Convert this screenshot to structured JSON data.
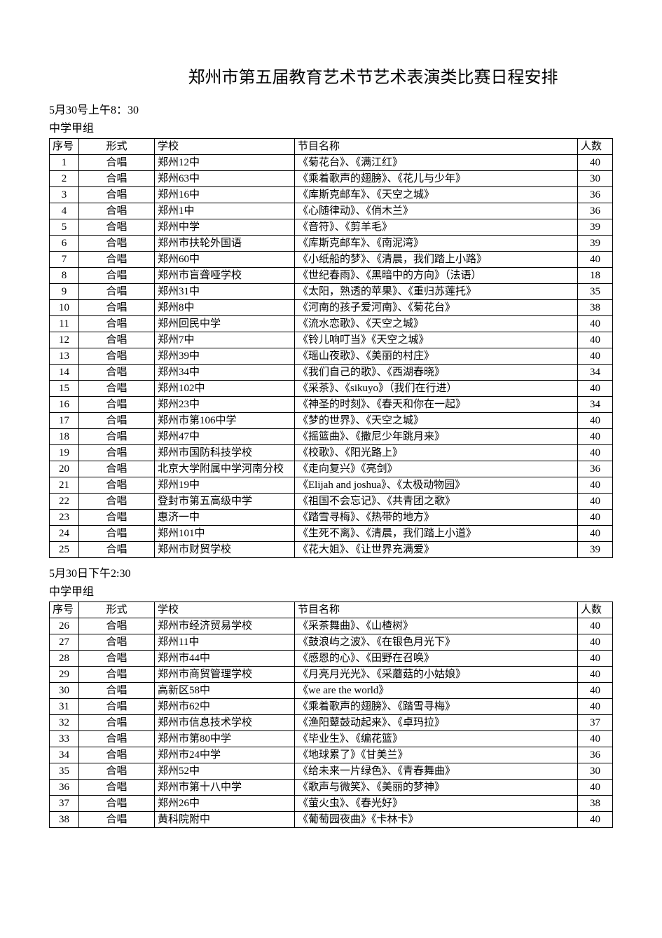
{
  "title": "郑州市第五届教育艺术节艺术表演类比赛日程安排",
  "columns": {
    "seq": "序号",
    "form": "形式",
    "school": "学校",
    "program": "节目名称",
    "count": "人数"
  },
  "sessions": [
    {
      "time": "5月30号上午8：30",
      "group": "中学甲组",
      "rows": [
        {
          "seq": "1",
          "form": "合唱",
          "school": "郑州12中",
          "program": "《菊花台》、《满江红》",
          "count": "40"
        },
        {
          "seq": "2",
          "form": "合唱",
          "school": "郑州63中",
          "program": "《乘着歌声的翅膀》、《花儿与少年》",
          "count": "30"
        },
        {
          "seq": "3",
          "form": "合唱",
          "school": "郑州16中",
          "program": "《库斯克邮车》、《天空之城》",
          "count": "36"
        },
        {
          "seq": "4",
          "form": "合唱",
          "school": "郑州1中",
          "program": "《心随律动》、《俏木兰》",
          "count": "36"
        },
        {
          "seq": "5",
          "form": "合唱",
          "school": "郑州中学",
          "program": "《音符》、《剪羊毛》",
          "count": "39"
        },
        {
          "seq": "6",
          "form": "合唱",
          "school": "郑州市扶轮外国语",
          "program": "《库斯克邮车》、《南泥湾》",
          "count": "39"
        },
        {
          "seq": "7",
          "form": "合唱",
          "school": "郑州60中",
          "program": "《小纸船的梦》、《清晨，我们踏上小路》",
          "count": "40"
        },
        {
          "seq": "8",
          "form": "合唱",
          "school": "郑州市盲聋哑学校",
          "program": "《世纪春雨》、《黑暗中的方向》（法语）",
          "count": "18"
        },
        {
          "seq": "9",
          "form": "合唱",
          "school": "郑州31中",
          "program": "《太阳，熟透的苹果》、《重归苏莲托》",
          "count": "35"
        },
        {
          "seq": "10",
          "form": "合唱",
          "school": "郑州8中",
          "program": "《河南的孩子爱河南》、《菊花台》",
          "count": "38"
        },
        {
          "seq": "11",
          "form": "合唱",
          "school": "郑州回民中学",
          "program": "《流水恋歌》、《天空之城》",
          "count": "40"
        },
        {
          "seq": "12",
          "form": "合唱",
          "school": "郑州7中",
          "program": "《铃儿响叮当》《天空之城》",
          "count": "40"
        },
        {
          "seq": "13",
          "form": "合唱",
          "school": "郑州39中",
          "program": "《瑶山夜歌》、《美丽的村庄》",
          "count": "40"
        },
        {
          "seq": "14",
          "form": "合唱",
          "school": "郑州34中",
          "program": "《我们自己的歌》、《西湖春晓》",
          "count": "34"
        },
        {
          "seq": "15",
          "form": "合唱",
          "school": "郑州102中",
          "program": "《采茶》、《sikuyo》（我们在行进）",
          "count": "40"
        },
        {
          "seq": "16",
          "form": "合唱",
          "school": "郑州23中",
          "program": "《神圣的时刻》、《春天和你在一起》",
          "count": "34"
        },
        {
          "seq": "17",
          "form": "合唱",
          "school": "郑州市第106中学",
          "program": "《梦的世界》、《天空之城》",
          "count": "40"
        },
        {
          "seq": "18",
          "form": "合唱",
          "school": "郑州47中",
          "program": "《摇篮曲》、《撒尼少年跳月来》",
          "count": "40"
        },
        {
          "seq": "19",
          "form": "合唱",
          "school": "郑州市国防科技学校",
          "program": "《校歌》、《阳光路上》",
          "count": "40"
        },
        {
          "seq": "20",
          "form": "合唱",
          "school": "北京大学附属中学河南分校",
          "program": "《走向复兴》《亮剑》",
          "count": "36"
        },
        {
          "seq": "21",
          "form": "合唱",
          "school": "郑州19中",
          "program": "《Elijah and joshua》、《太极动物园》",
          "count": "40"
        },
        {
          "seq": "22",
          "form": "合唱",
          "school": "登封市第五高级中学",
          "program": "《祖国不会忘记》、《共青团之歌》",
          "count": "40"
        },
        {
          "seq": "23",
          "form": "合唱",
          "school": "惠济一中",
          "program": "《踏雪寻梅》、《热带的地方》",
          "count": "40"
        },
        {
          "seq": "24",
          "form": "合唱",
          "school": "郑州101中",
          "program": "《生死不离》、《清晨，我们踏上小道》",
          "count": "40"
        },
        {
          "seq": "25",
          "form": "合唱",
          "school": "郑州市财贸学校",
          "program": "《花大姐》、《让世界充满爱》",
          "count": "39"
        }
      ]
    },
    {
      "time": "5月30日下午2:30",
      "group": "中学甲组",
      "rows": [
        {
          "seq": "26",
          "form": "合唱",
          "school": "郑州市经济贸易学校",
          "program": "《采茶舞曲》、《山楂树》",
          "count": "40"
        },
        {
          "seq": "27",
          "form": "合唱",
          "school": "郑州11中",
          "program": "《鼓浪屿之波》、《在银色月光下》",
          "count": "40"
        },
        {
          "seq": "28",
          "form": "合唱",
          "school": "郑州市44中",
          "program": "《感恩的心》、《田野在召唤》",
          "count": "40"
        },
        {
          "seq": "29",
          "form": "合唱",
          "school": "郑州市商贸管理学校",
          "program": "《月亮月光光》、《采蘑菇的小姑娘》",
          "count": "40"
        },
        {
          "seq": "30",
          "form": "合唱",
          "school": "高新区58中",
          "program": "《we  are  the  world》",
          "count": "40"
        },
        {
          "seq": "31",
          "form": "合唱",
          "school": "郑州市62中",
          "program": "《乘着歌声的翅膀》、《踏雪寻梅》",
          "count": "40"
        },
        {
          "seq": "32",
          "form": "合唱",
          "school": "郑州市信息技术学校",
          "program": "《渔阳鼙鼓动起来》、《卓玛拉》",
          "count": "37"
        },
        {
          "seq": "33",
          "form": "合唱",
          "school": "郑州市第80中学",
          "program": "《毕业生》、《编花篮》",
          "count": "40"
        },
        {
          "seq": "34",
          "form": "合唱",
          "school": "郑州市24中学",
          "program": "《地球累了》《甘美兰》",
          "count": "36"
        },
        {
          "seq": "35",
          "form": "合唱",
          "school": "郑州52中",
          "program": "《给未来一片绿色》、《青春舞曲》",
          "count": "30"
        },
        {
          "seq": "36",
          "form": "合唱",
          "school": "郑州市第十八中学",
          "program": "《歌声与微笑》、《美丽的梦神》",
          "count": "40"
        },
        {
          "seq": "37",
          "form": "合唱",
          "school": "郑州26中",
          "program": "《萤火虫》、《春光好》",
          "count": "38"
        },
        {
          "seq": "38",
          "form": "合唱",
          "school": "黄科院附中",
          "program": "《葡萄园夜曲》《卡林卡》",
          "count": "40"
        }
      ]
    }
  ]
}
